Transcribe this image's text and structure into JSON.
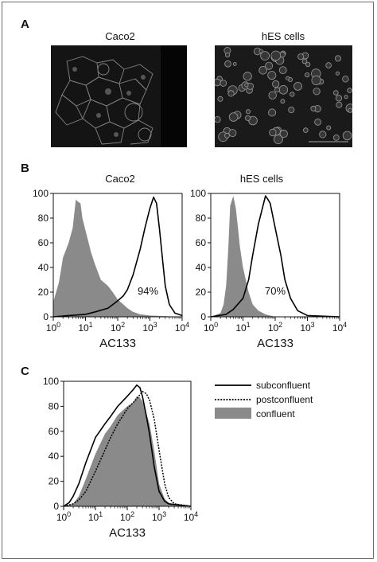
{
  "figure": {
    "panels": {
      "a": {
        "letter": "A",
        "images": [
          {
            "title": "Caco2"
          },
          {
            "title": "hES cells"
          }
        ]
      },
      "b": {
        "letter": "B"
      },
      "c": {
        "letter": "C"
      }
    }
  },
  "colors": {
    "filled": "#8a8a8a",
    "line": "#000000",
    "frame": "#6a6a6a"
  },
  "chart_data": [
    {
      "type": "area",
      "title": "Caco2",
      "xlabel": "AC133",
      "ylabel": "",
      "xscale": "log",
      "xlim": [
        1,
        10000
      ],
      "ylim": [
        0,
        100
      ],
      "xticks": [
        "10^0",
        "10^1",
        "10^2",
        "10^3",
        "10^4"
      ],
      "yticks": [
        0,
        20,
        40,
        60,
        80,
        100
      ],
      "annotation": "94%",
      "series": [
        {
          "style": "filled",
          "x": [
            1,
            1.5,
            2,
            3,
            4,
            5,
            6,
            7,
            8,
            10,
            15,
            20,
            30,
            50,
            70,
            100,
            150,
            200,
            300,
            500,
            1000,
            10000
          ],
          "y": [
            12,
            28,
            48,
            60,
            72,
            95,
            93,
            92,
            80,
            70,
            52,
            42,
            30,
            25,
            20,
            14,
            10,
            7,
            4,
            2,
            1,
            0
          ]
        },
        {
          "style": "line",
          "x": [
            1,
            3,
            10,
            20,
            50,
            100,
            150,
            200,
            300,
            500,
            700,
            1000,
            1300,
            1600,
            2000,
            2500,
            3000,
            4000,
            6000,
            10000
          ],
          "y": [
            0,
            1,
            2,
            4,
            7,
            13,
            17,
            22,
            34,
            55,
            72,
            88,
            97,
            92,
            70,
            45,
            25,
            10,
            3,
            1
          ]
        }
      ]
    },
    {
      "type": "area",
      "title": "hES cells",
      "xlabel": "AC133",
      "ylabel": "",
      "xscale": "log",
      "xlim": [
        1,
        10000
      ],
      "ylim": [
        0,
        100
      ],
      "xticks": [
        "10^0",
        "10^1",
        "10^2",
        "10^3",
        "10^4"
      ],
      "yticks": [
        0,
        20,
        40,
        60,
        80,
        100
      ],
      "annotation": "70%",
      "series": [
        {
          "style": "filled",
          "x": [
            1,
            2,
            2.5,
            3,
            3.5,
            4,
            5,
            6,
            7,
            8,
            10,
            15,
            20,
            30,
            50,
            100,
            10000
          ],
          "y": [
            0,
            3,
            10,
            25,
            55,
            90,
            98,
            88,
            72,
            57,
            40,
            20,
            10,
            5,
            2,
            0,
            0
          ]
        },
        {
          "style": "line",
          "x": [
            1,
            3,
            5,
            10,
            15,
            20,
            30,
            40,
            50,
            60,
            70,
            100,
            150,
            200,
            300,
            500,
            1000,
            10000
          ],
          "y": [
            0,
            2,
            6,
            15,
            30,
            50,
            75,
            88,
            98,
            95,
            92,
            72,
            50,
            30,
            15,
            5,
            1,
            0
          ]
        }
      ]
    },
    {
      "type": "area",
      "title": "",
      "xlabel": "AC133",
      "ylabel": "",
      "xscale": "log",
      "xlim": [
        1,
        10000
      ],
      "ylim": [
        0,
        100
      ],
      "xticks": [
        "10^0",
        "10^1",
        "10^2",
        "10^3",
        "10^4"
      ],
      "yticks": [
        0,
        20,
        40,
        60,
        80,
        100
      ],
      "legend_position": "top-right",
      "series": [
        {
          "name": "confluent",
          "style": "filled",
          "x": [
            1,
            2,
            3,
            5,
            10,
            20,
            30,
            50,
            100,
            150,
            200,
            250,
            300,
            400,
            500,
            700,
            1000,
            1500,
            2000,
            3000,
            10000
          ],
          "y": [
            0,
            2,
            8,
            22,
            42,
            58,
            64,
            73,
            80,
            83,
            88,
            87,
            84,
            74,
            66,
            45,
            18,
            6,
            3,
            1,
            0
          ]
        },
        {
          "name": "subconfluent",
          "style": "solid",
          "x": [
            1,
            1.5,
            2,
            3,
            5,
            10,
            20,
            30,
            50,
            100,
            150,
            200,
            250,
            300,
            400,
            500,
            700,
            1000,
            1500,
            2000,
            10000
          ],
          "y": [
            0,
            3,
            8,
            18,
            35,
            55,
            66,
            72,
            80,
            88,
            93,
            97,
            95,
            88,
            72,
            58,
            32,
            12,
            4,
            2,
            0
          ]
        },
        {
          "name": "postconfluent",
          "style": "dotted",
          "x": [
            1,
            2,
            3,
            5,
            10,
            20,
            30,
            50,
            100,
            200,
            300,
            400,
            500,
            700,
            1000,
            1500,
            2000,
            3000,
            10000
          ],
          "y": [
            0,
            2,
            5,
            12,
            28,
            45,
            55,
            66,
            78,
            86,
            92,
            90,
            85,
            70,
            45,
            18,
            7,
            2,
            0
          ]
        }
      ]
    }
  ]
}
